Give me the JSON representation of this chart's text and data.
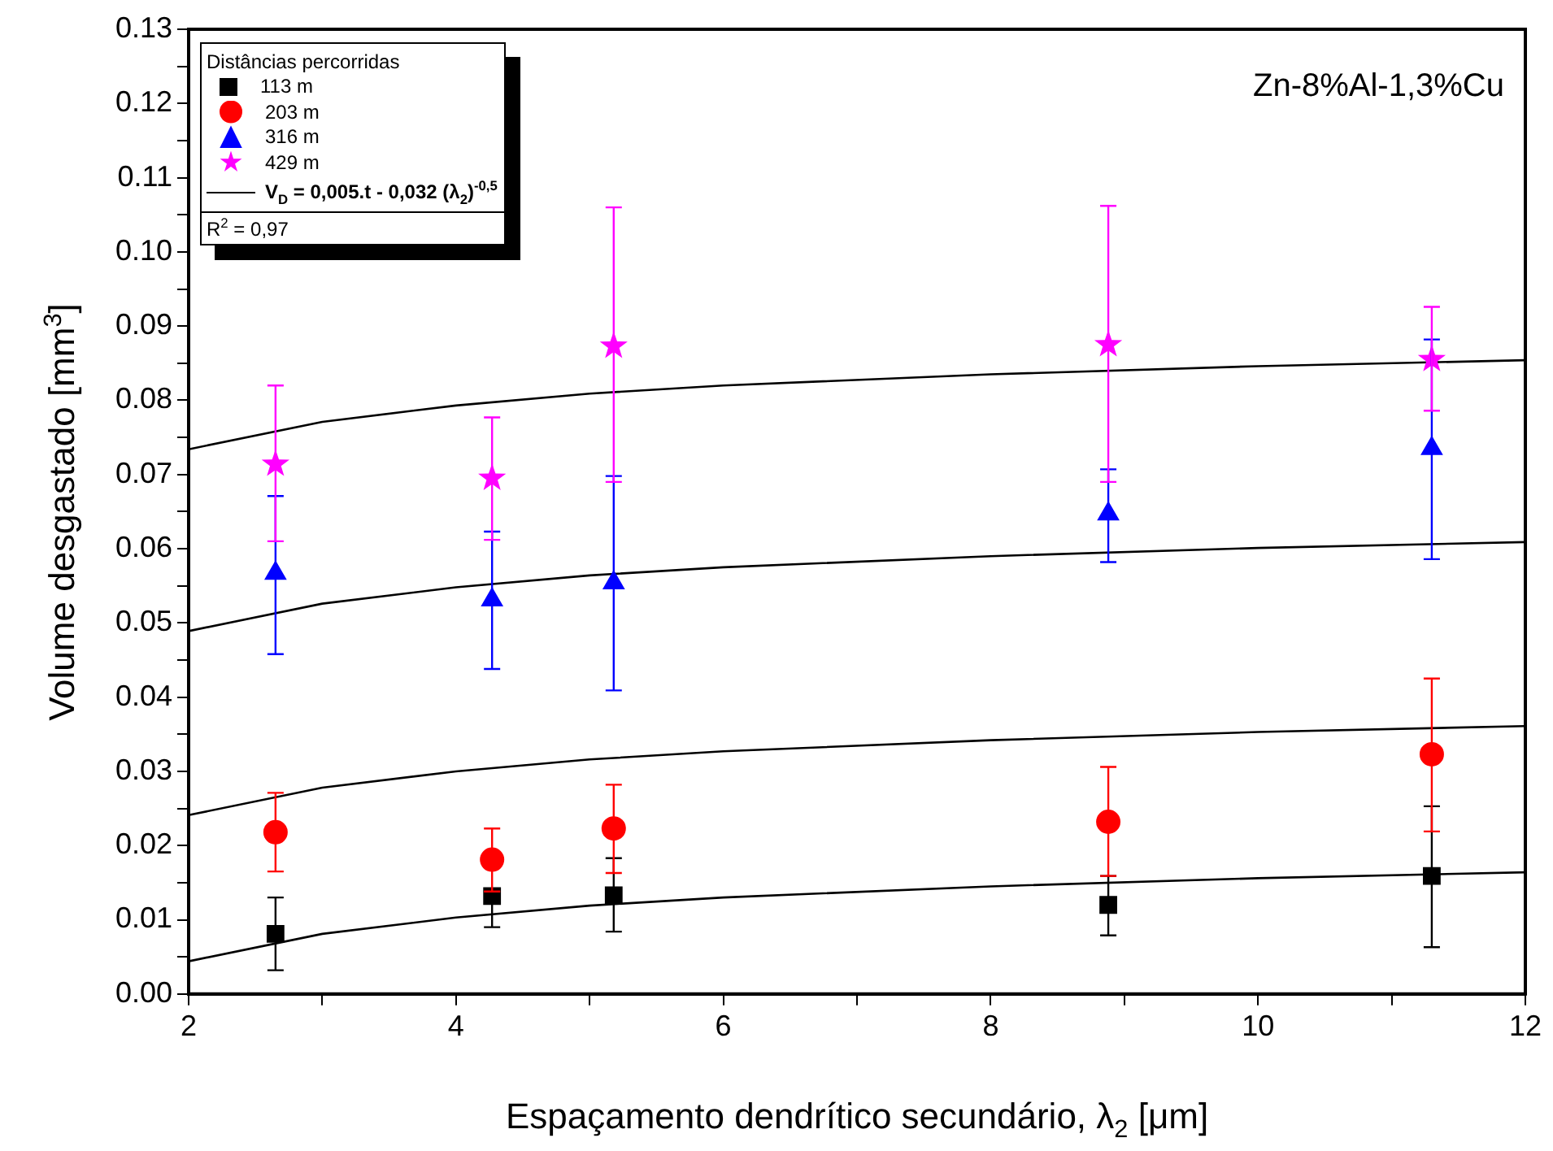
{
  "chart_data": {
    "type": "scatter",
    "xlabel": "Espaçamento dendrítico secundário, λ$_{2}$ [μm]",
    "ylabel": "Volume desgastado [mm$^{3}$]",
    "legend_title": "Distâncias percorridas",
    "legend": "top left",
    "grid": false,
    "annotations": [
      "Zn-8%Al-1,3%Cu",
      "R$^{2}$ = 0,97"
    ],
    "xlim": [
      2,
      12
    ],
    "xticks": [
      2,
      {
        "value": 3,
        "label": null
      },
      4,
      {
        "value": 5,
        "label": null
      },
      6,
      {
        "value": 7,
        "label": null
      },
      8,
      {
        "value": 9,
        "label": null
      },
      10,
      {
        "value": 11,
        "label": null
      },
      12
    ],
    "ylim": [
      0,
      0.13
    ],
    "yticks": [
      {
        "value": 0,
        "label": "0.00"
      },
      {
        "value": 0.005,
        "label": null
      },
      {
        "value": 0.01,
        "label": "0.01"
      },
      {
        "value": 0.015,
        "label": null
      },
      {
        "value": 0.02,
        "label": "0.02"
      },
      {
        "value": 0.025,
        "label": null
      },
      {
        "value": 0.03,
        "label": "0.03"
      },
      {
        "value": 0.035,
        "label": null
      },
      {
        "value": 0.04,
        "label": "0.04"
      },
      {
        "value": 0.045,
        "label": null
      },
      {
        "value": 0.05,
        "label": "0.05"
      },
      {
        "value": 0.055,
        "label": null
      },
      {
        "value": 0.06,
        "label": "0.06"
      },
      {
        "value": 0.065,
        "label": null
      },
      {
        "value": 0.07,
        "label": "0.07"
      },
      {
        "value": 0.075,
        "label": null
      },
      {
        "value": 0.08,
        "label": "0.08"
      },
      {
        "value": 0.085,
        "label": null
      },
      {
        "value": 0.09,
        "label": "0.09"
      },
      {
        "value": 0.095,
        "label": null
      },
      {
        "value": 0.1,
        "label": "0.10"
      },
      {
        "value": 0.105,
        "label": null
      },
      {
        "value": 0.11,
        "label": "0.11"
      },
      {
        "value": 0.115,
        "label": null
      },
      {
        "value": 0.12,
        "label": "0.12"
      },
      {
        "value": 0.125,
        "label": null
      },
      {
        "value": 0.13,
        "label": "0.13"
      }
    ],
    "series": [
      {
        "type": "line",
        "name": "V$_{D}$ = 0,005.t - 0,032 (λ$_{2}$)$^{-0,5}$",
        "color": "#000000",
        "marker": "none",
        "line_style": "solid",
        "x": [
          2,
          3,
          4,
          5,
          6,
          8,
          10,
          12
        ],
        "values": [
          0.0044,
          0.0081,
          0.0103,
          0.0119,
          0.013,
          0.0145,
          0.0156,
          0.0164
        ]
      },
      {
        "type": "line",
        "color": "#000000",
        "marker": "none",
        "line_style": "solid",
        "x": [
          2,
          3,
          4,
          5,
          6,
          8,
          10,
          12
        ],
        "values": [
          0.0241,
          0.0278,
          0.03,
          0.0316,
          0.0327,
          0.0342,
          0.0353,
          0.0361
        ]
      },
      {
        "type": "line",
        "color": "#000000",
        "marker": "none",
        "line_style": "solid",
        "x": [
          2,
          3,
          4,
          5,
          6,
          8,
          10,
          12
        ],
        "values": [
          0.0489,
          0.0526,
          0.0548,
          0.0564,
          0.0575,
          0.059,
          0.0601,
          0.0609
        ]
      },
      {
        "type": "line",
        "color": "#000000",
        "marker": "none",
        "line_style": "solid",
        "x": [
          2,
          3,
          4,
          5,
          6,
          8,
          10,
          12
        ],
        "values": [
          0.0734,
          0.0771,
          0.0793,
          0.0809,
          0.082,
          0.0835,
          0.0846,
          0.0854
        ]
      },
      {
        "name": "113 m",
        "color": "#000000",
        "marker": "square",
        "x": [
          2.65,
          4.27,
          5.18,
          8.88,
          11.3
        ],
        "values": [
          0.0081,
          0.0132,
          0.0133,
          0.012,
          0.0159
        ],
        "errors": [
          [
            0.0032,
            0.013
          ],
          [
            0.009,
            0.0135
          ],
          [
            0.0084,
            0.0183
          ],
          [
            0.0079,
            0.0159
          ],
          [
            0.0063,
            0.0253
          ]
        ]
      },
      {
        "name": "203 m",
        "color": "#ff0000",
        "marker": "circle",
        "x": [
          2.65,
          4.27,
          5.18,
          8.88,
          11.3
        ],
        "values": [
          0.0218,
          0.0181,
          0.0223,
          0.0232,
          0.0323
        ],
        "errors": [
          [
            0.0165,
            0.0271
          ],
          [
            0.0138,
            0.0223
          ],
          [
            0.0163,
            0.0282
          ],
          [
            0.0159,
            0.0306
          ],
          [
            0.0219,
            0.0425
          ]
        ]
      },
      {
        "name": "316 m",
        "color": "#0000ff",
        "marker": "triangle",
        "x": [
          2.65,
          4.27,
          5.18,
          8.88,
          11.3
        ],
        "values": [
          0.0567,
          0.0531,
          0.0554,
          0.0647,
          0.0735
        ],
        "errors": [
          [
            0.0458,
            0.0671
          ],
          [
            0.0438,
            0.0623
          ],
          [
            0.0409,
            0.0698
          ],
          [
            0.0582,
            0.0707
          ],
          [
            0.0586,
            0.0882
          ]
        ]
      },
      {
        "name": "429 m",
        "color": "#ff00ff",
        "marker": "star",
        "x": [
          2.65,
          4.27,
          5.18,
          8.88,
          11.3
        ],
        "values": [
          0.0714,
          0.0695,
          0.0873,
          0.0875,
          0.0855
        ],
        "errors": [
          [
            0.061,
            0.082
          ],
          [
            0.0612,
            0.0777
          ],
          [
            0.069,
            0.106
          ],
          [
            0.069,
            0.1062
          ],
          [
            0.0786,
            0.0926
          ]
        ]
      }
    ]
  }
}
